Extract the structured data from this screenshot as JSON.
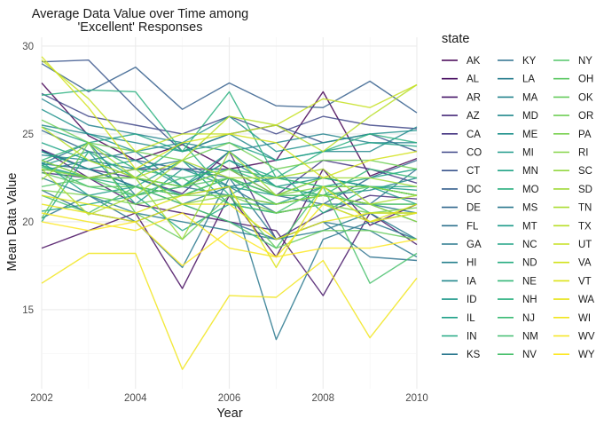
{
  "chart_data": {
    "type": "line",
    "title": "Average Data Value over Time among\n'Excellent' Responses",
    "xlabel": "Year",
    "ylabel": "Mean Data Value",
    "xlim": [
      2002,
      2010
    ],
    "ylim": [
      10.5,
      30.5
    ],
    "x_ticks": [
      2002,
      2004,
      2006,
      2008,
      2010
    ],
    "y_ticks": [
      15,
      20,
      25,
      30
    ],
    "grid": true,
    "legend_title": "state",
    "legend_placement": "right",
    "x": [
      2002,
      2003,
      2004,
      2005,
      2006,
      2007,
      2008,
      2009,
      2010
    ],
    "series": [
      {
        "name": "AK",
        "color": "#440154",
        "values": [
          27.9,
          24.9,
          23.5,
          24.4,
          23.0,
          23.5,
          27.4,
          22.6,
          23.6
        ]
      },
      {
        "name": "AL",
        "color": "#470D60",
        "values": [
          18.5,
          19.5,
          20.5,
          16.2,
          21.5,
          18.0,
          23.0,
          19.8,
          21.0
        ]
      },
      {
        "name": "AR",
        "color": "#48186A",
        "values": [
          24.1,
          22.5,
          21.0,
          20.5,
          20.0,
          19.5,
          15.8,
          20.5,
          18.7
        ]
      },
      {
        "name": "AZ",
        "color": "#472A79",
        "values": [
          24.1,
          23.0,
          22.5,
          21.6,
          24.0,
          19.0,
          20.5,
          21.5,
          21.3
        ]
      },
      {
        "name": "CA",
        "color": "#453581",
        "values": [
          22.8,
          22.5,
          23.0,
          23.0,
          23.0,
          21.5,
          23.5,
          23.0,
          22.2
        ]
      },
      {
        "name": "CO",
        "color": "#3F4788",
        "values": [
          27.3,
          26.0,
          25.5,
          25.0,
          26.0,
          25.0,
          26.0,
          25.5,
          25.3
        ]
      },
      {
        "name": "CT",
        "color": "#39558C",
        "values": [
          29.1,
          29.2,
          26.5,
          24.0,
          25.0,
          25.5,
          24.5,
          25.0,
          24.0
        ]
      },
      {
        "name": "DC",
        "color": "#355F8D",
        "values": [
          29.0,
          27.4,
          28.8,
          26.4,
          27.9,
          26.6,
          26.5,
          28.0,
          26.2
        ]
      },
      {
        "name": "DE",
        "color": "#31688E",
        "values": [
          25.2,
          24.0,
          23.5,
          23.0,
          22.5,
          21.5,
          21.0,
          22.5,
          23.5
        ]
      },
      {
        "name": "FL",
        "color": "#2D718E",
        "values": [
          23.3,
          23.0,
          22.0,
          21.5,
          22.0,
          20.5,
          21.0,
          21.0,
          23.0
        ]
      },
      {
        "name": "GA",
        "color": "#2A788E",
        "values": [
          23.3,
          24.5,
          21.5,
          22.0,
          21.5,
          21.0,
          21.5,
          21.0,
          20.5
        ]
      },
      {
        "name": "HI",
        "color": "#27808E",
        "values": [
          22.9,
          23.5,
          23.0,
          23.5,
          22.0,
          22.5,
          22.5,
          22.0,
          21.5
        ]
      },
      {
        "name": "IA",
        "color": "#23888E",
        "values": [
          23.8,
          23.5,
          24.0,
          22.0,
          23.5,
          22.0,
          21.5,
          21.8,
          22.5
        ]
      },
      {
        "name": "ID",
        "color": "#1F988B",
        "values": [
          23.2,
          24.0,
          21.0,
          23.0,
          22.0,
          21.5,
          21.5,
          21.0,
          20.0
        ]
      },
      {
        "name": "IL",
        "color": "#1FA088",
        "values": [
          23.4,
          21.5,
          22.0,
          23.5,
          21.0,
          21.0,
          22.0,
          22.0,
          21.5
        ]
      },
      {
        "name": "IN",
        "color": "#22A884",
        "values": [
          20.6,
          21.0,
          21.5,
          19.5,
          21.0,
          20.5,
          21.0,
          20.0,
          20.5
        ]
      },
      {
        "name": "KS",
        "color": "#2A788E",
        "values": [
          24.0,
          23.0,
          22.0,
          21.0,
          22.0,
          13.3,
          19.0,
          20.0,
          19.0
        ]
      },
      {
        "name": "KY",
        "color": "#2D718E",
        "values": [
          21.8,
          20.5,
          20.0,
          21.0,
          20.0,
          19.0,
          20.0,
          18.0,
          17.8
        ]
      },
      {
        "name": "LA",
        "color": "#287D8E",
        "values": [
          22.5,
          21.5,
          20.5,
          20.0,
          19.5,
          19.0,
          19.5,
          20.5,
          19.0
        ]
      },
      {
        "name": "MA",
        "color": "#25848E",
        "values": [
          27.0,
          25.5,
          25.0,
          24.5,
          24.0,
          24.5,
          25.0,
          24.5,
          24.5
        ]
      },
      {
        "name": "MD",
        "color": "#238A8D",
        "values": [
          25.5,
          25.0,
          24.5,
          24.0,
          25.0,
          23.5,
          24.0,
          24.0,
          25.4
        ]
      },
      {
        "name": "ME",
        "color": "#20928C",
        "values": [
          26.4,
          25.0,
          24.0,
          24.5,
          26.0,
          24.0,
          24.5,
          25.0,
          25.2
        ]
      },
      {
        "name": "MI",
        "color": "#1F9A8A",
        "values": [
          23.2,
          22.5,
          22.5,
          21.5,
          22.5,
          21.5,
          22.5,
          22.0,
          21.8
        ]
      },
      {
        "name": "MN",
        "color": "#21A386",
        "values": [
          25.4,
          24.5,
          25.0,
          24.0,
          24.5,
          23.5,
          24.0,
          24.5,
          24.3
        ]
      },
      {
        "name": "MO",
        "color": "#29AF7F",
        "values": [
          23.5,
          22.5,
          22.0,
          21.5,
          22.5,
          21.0,
          21.5,
          21.0,
          21.0
        ]
      },
      {
        "name": "MS",
        "color": "#2A788E",
        "values": [
          20.2,
          21.5,
          20.0,
          17.4,
          22.5,
          19.0,
          20.0,
          19.5,
          18.0
        ]
      },
      {
        "name": "MT",
        "color": "#1E9B8A",
        "values": [
          24.0,
          23.0,
          23.5,
          22.0,
          24.0,
          22.0,
          22.5,
          22.0,
          21.0
        ]
      },
      {
        "name": "NC",
        "color": "#20A486",
        "values": [
          24.5,
          23.5,
          22.5,
          22.0,
          23.5,
          22.5,
          22.0,
          22.5,
          23.0
        ]
      },
      {
        "name": "ND",
        "color": "#27AD81",
        "values": [
          20.0,
          24.0,
          22.5,
          24.5,
          21.5,
          23.0,
          20.5,
          22.0,
          22.0
        ]
      },
      {
        "name": "NE",
        "color": "#35B779",
        "values": [
          23.5,
          24.5,
          23.0,
          22.5,
          23.0,
          22.0,
          21.5,
          23.0,
          22.5
        ]
      },
      {
        "name": "NH",
        "color": "#2AB07F",
        "values": [
          27.2,
          27.5,
          27.4,
          24.0,
          27.4,
          22.5,
          24.0,
          25.0,
          24.5
        ]
      },
      {
        "name": "NJ",
        "color": "#3BBB75",
        "values": [
          23.1,
          22.5,
          22.5,
          22.0,
          23.0,
          22.5,
          22.0,
          22.0,
          21.5
        ]
      },
      {
        "name": "NM",
        "color": "#42BE71",
        "values": [
          23.2,
          22.0,
          21.5,
          22.5,
          21.0,
          20.5,
          22.0,
          20.5,
          20.5
        ]
      },
      {
        "name": "NV",
        "color": "#49C16D",
        "values": [
          21.5,
          20.5,
          22.0,
          21.0,
          20.0,
          18.5,
          22.0,
          16.5,
          18.2
        ]
      },
      {
        "name": "NY",
        "color": "#52C569",
        "values": [
          22.0,
          22.5,
          21.5,
          22.0,
          22.5,
          21.0,
          21.5,
          22.0,
          21.5
        ]
      },
      {
        "name": "OH",
        "color": "#5CC863",
        "values": [
          22.8,
          22.0,
          22.0,
          21.5,
          22.5,
          21.5,
          21.5,
          21.0,
          21.0
        ]
      },
      {
        "name": "OK",
        "color": "#66CB5D",
        "values": [
          20.2,
          24.5,
          20.5,
          19.0,
          21.5,
          18.5,
          19.5,
          19.5,
          19.0
        ]
      },
      {
        "name": "OR",
        "color": "#70CF57",
        "values": [
          25.8,
          24.5,
          24.0,
          23.5,
          24.5,
          23.0,
          23.5,
          23.5,
          23.0
        ]
      },
      {
        "name": "PA",
        "color": "#7AD151",
        "values": [
          21.8,
          21.5,
          21.0,
          21.5,
          21.5,
          20.5,
          21.0,
          20.5,
          20.8
        ]
      },
      {
        "name": "RI",
        "color": "#86D549",
        "values": [
          23.0,
          22.5,
          22.5,
          22.0,
          23.0,
          21.5,
          22.0,
          22.0,
          21.5
        ]
      },
      {
        "name": "SC",
        "color": "#93D741",
        "values": [
          23.5,
          22.5,
          23.0,
          21.0,
          21.5,
          21.0,
          21.5,
          21.0,
          20.0
        ]
      },
      {
        "name": "SD",
        "color": "#A0DA39",
        "values": [
          22.4,
          24.5,
          22.5,
          19.0,
          24.0,
          21.5,
          22.5,
          22.5,
          22.0
        ]
      },
      {
        "name": "TN",
        "color": "#AADC32",
        "values": [
          23.0,
          20.4,
          21.5,
          23.5,
          22.5,
          22.5,
          23.0,
          21.0,
          21.5
        ]
      },
      {
        "name": "TX",
        "color": "#B8DE29",
        "values": [
          25.4,
          23.5,
          22.5,
          23.5,
          26.0,
          25.5,
          24.0,
          26.0,
          27.8
        ]
      },
      {
        "name": "UT",
        "color": "#C5E021",
        "values": [
          29.2,
          27.0,
          24.0,
          25.0,
          25.0,
          25.5,
          27.0,
          26.5,
          27.8
        ]
      },
      {
        "name": "VA",
        "color": "#D2E21B",
        "values": [
          29.4,
          26.5,
          23.0,
          24.5,
          25.0,
          24.5,
          22.5,
          23.5,
          24.0
        ]
      },
      {
        "name": "VT",
        "color": "#DDE318",
        "values": [
          21.5,
          21.0,
          20.5,
          21.5,
          22.0,
          17.4,
          22.0,
          20.0,
          21.0
        ]
      },
      {
        "name": "WA",
        "color": "#E7E419",
        "values": [
          21.0,
          20.5,
          20.0,
          21.0,
          21.0,
          19.0,
          20.0,
          20.5,
          20.5
        ]
      },
      {
        "name": "WI",
        "color": "#F1E51D",
        "values": [
          16.5,
          18.2,
          18.2,
          11.6,
          15.8,
          15.7,
          17.8,
          13.4,
          16.8
        ]
      },
      {
        "name": "WV",
        "color": "#F5E61F",
        "values": [
          20.5,
          20.0,
          19.5,
          20.5,
          18.5,
          18.0,
          21.0,
          20.0,
          20.5
        ]
      },
      {
        "name": "WY",
        "color": "#FDE725",
        "values": [
          20.0,
          19.5,
          20.0,
          17.5,
          19.5,
          18.0,
          18.5,
          18.5,
          19.0
        ]
      }
    ]
  }
}
